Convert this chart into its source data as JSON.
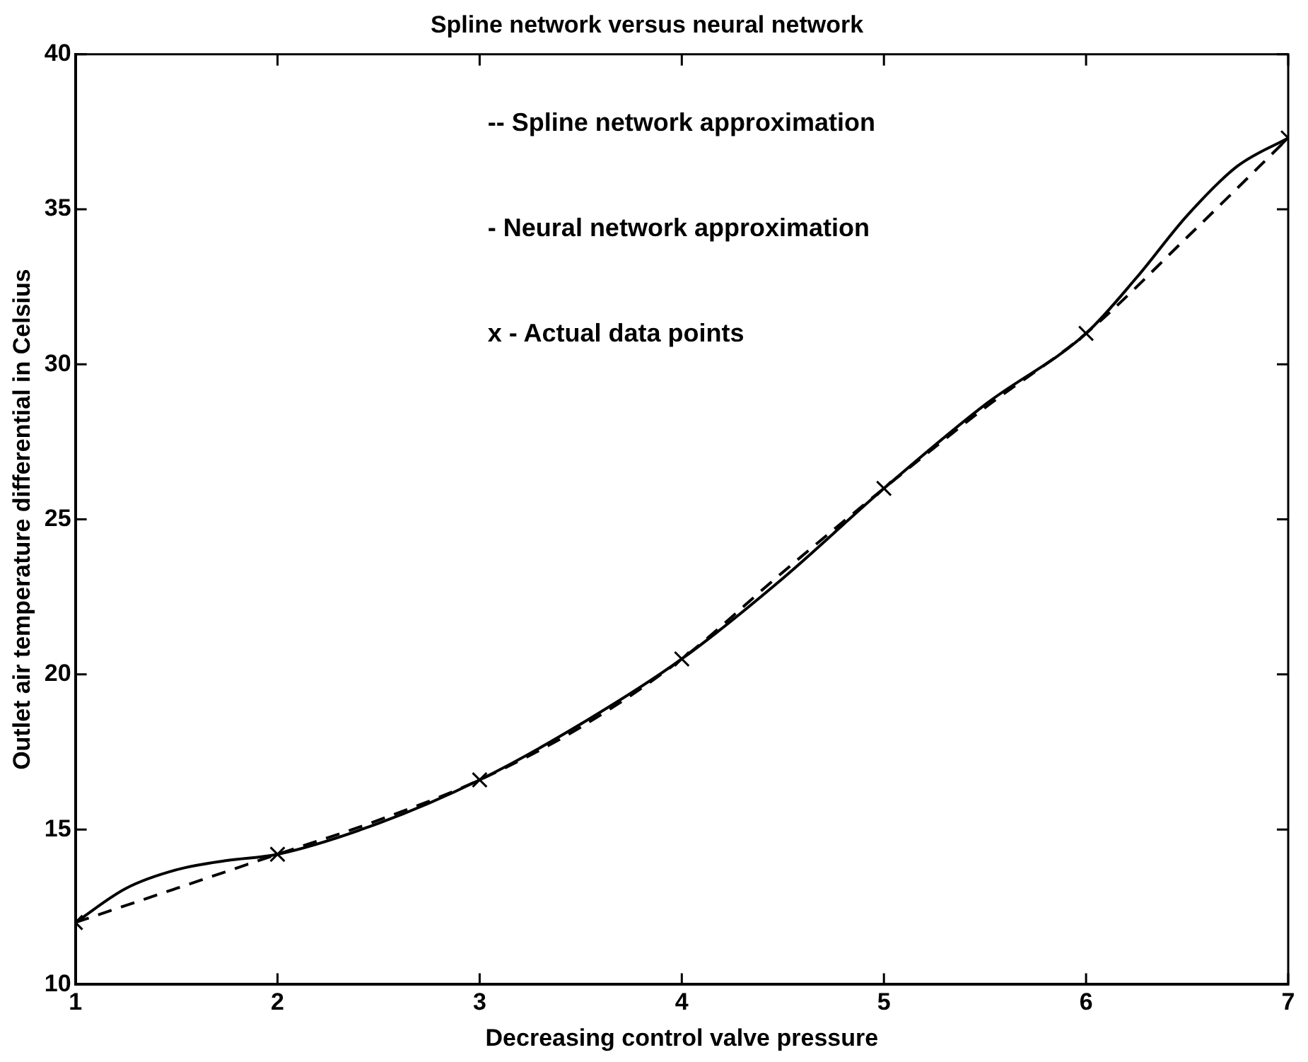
{
  "chart_data": {
    "type": "line",
    "title": "Spline network versus neural network",
    "xlabel": "Decreasing control valve pressure",
    "ylabel": "Outlet air temperature differential in Celsius",
    "annotations": [
      "-- Spline network approximation",
      "- Neural network approximation",
      "x - Actual data points"
    ],
    "xlim": [
      1,
      7
    ],
    "xticks": [
      1,
      2,
      3,
      4,
      5,
      6,
      7
    ],
    "ylim": [
      10,
      40
    ],
    "yticks": [
      10,
      15,
      20,
      25,
      30,
      35,
      40
    ],
    "grid": false,
    "legend": false,
    "series": [
      {
        "color": "#000000",
        "line_style": "dashed",
        "marker": "none",
        "x": [
          1,
          1.5,
          2,
          2.5,
          3,
          3.5,
          4,
          4.5,
          5,
          5.5,
          6,
          6.5,
          7
        ],
        "values": [
          12,
          13.1,
          14.2,
          15.3,
          16.6,
          18.3,
          20.5,
          23.3,
          26,
          28.6,
          31,
          34.1,
          37.3
        ]
      },
      {
        "color": "#000000",
        "line_style": "solid",
        "marker": "none",
        "x": [
          1,
          1.25,
          1.5,
          1.75,
          2,
          2.5,
          3,
          3.5,
          4,
          4.5,
          5,
          5.5,
          6,
          6.25,
          6.5,
          6.75,
          7
        ],
        "values": [
          12,
          13.1,
          13.7,
          14,
          14.2,
          15.2,
          16.6,
          18.4,
          20.5,
          23.1,
          26,
          28.7,
          31,
          32.8,
          34.8,
          36.4,
          37.3
        ]
      },
      {
        "type": "scatter",
        "color": "#000000",
        "marker": "cross",
        "x": [
          1,
          2,
          3,
          4,
          5,
          6,
          7
        ],
        "values": [
          12,
          14.2,
          16.6,
          20.5,
          26,
          31,
          37.3
        ]
      }
    ]
  }
}
